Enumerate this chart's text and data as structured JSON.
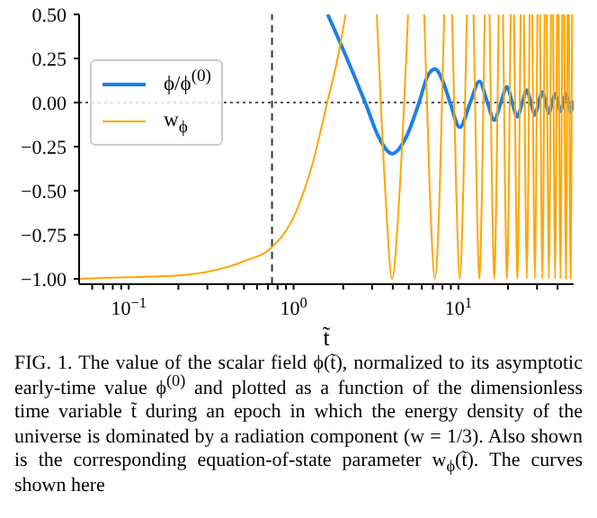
{
  "chart_data": {
    "type": "line",
    "xlabel": "t̃",
    "log": "x",
    "xlim": [
      0.05,
      50
    ],
    "ylim": [
      -1.03,
      0.5
    ],
    "xticks": [
      {
        "value": 0.06,
        "label": null
      },
      {
        "value": 0.07,
        "label": null
      },
      {
        "value": 0.08,
        "label": null
      },
      {
        "value": 0.09,
        "label": null
      },
      {
        "value": 0.1,
        "label": "10$^{−1}$"
      },
      {
        "value": 0.2,
        "label": null
      },
      {
        "value": 0.3,
        "label": null
      },
      {
        "value": 0.4,
        "label": null
      },
      {
        "value": 0.5,
        "label": null
      },
      {
        "value": 0.6,
        "label": null
      },
      {
        "value": 0.7,
        "label": null
      },
      {
        "value": 0.8,
        "label": null
      },
      {
        "value": 0.9,
        "label": null
      },
      {
        "value": 1,
        "label": "10$^{0}$"
      },
      {
        "value": 2,
        "label": null
      },
      {
        "value": 3,
        "label": null
      },
      {
        "value": 4,
        "label": null
      },
      {
        "value": 5,
        "label": null
      },
      {
        "value": 6,
        "label": null
      },
      {
        "value": 7,
        "label": null
      },
      {
        "value": 8,
        "label": null
      },
      {
        "value": 9,
        "label": null
      },
      {
        "value": 10,
        "label": "10$^{1}$"
      },
      {
        "value": 20,
        "label": null
      },
      {
        "value": 30,
        "label": null
      },
      {
        "value": 40,
        "label": null
      }
    ],
    "yticks": [
      {
        "value": 0.5,
        "label": "0.50"
      },
      {
        "value": 0.25,
        "label": "0.25"
      },
      {
        "value": 0,
        "label": "0.00"
      },
      {
        "value": -0.25,
        "label": "−0.25"
      },
      {
        "value": -0.5,
        "label": "−0.50"
      },
      {
        "value": -0.75,
        "label": "−0.75"
      },
      {
        "value": -1,
        "label": "−1.00"
      }
    ],
    "legend": "top left",
    "ref_lines": [
      {
        "axis": "x",
        "value": 0.74,
        "color": "#333333",
        "line_style": "dashed"
      },
      {
        "axis": "y",
        "value": 0,
        "color": "#555555",
        "line_style": "dotted"
      }
    ],
    "series": [
      {
        "name": "ϕ/ϕ$^{(0)}$",
        "color": "#1f7fe8",
        "x": [
          1.61,
          2.0,
          2.72,
          3.3,
          3.96,
          4.8,
          5.77,
          6.5,
          7.2,
          8.2,
          8.9,
          10.2,
          11.8,
          13.4,
          15.0,
          16.5,
          18.1,
          19.7,
          21.2,
          22.8,
          24.4,
          26.0,
          27.5,
          29.1,
          30.7,
          32.3,
          33.9,
          35.4,
          37.0,
          38.6,
          40.1,
          41.6,
          43.3,
          44.9,
          46.4,
          47.9,
          50
        ],
        "values": [
          0.5,
          0.3,
          0,
          -0.2,
          -0.29,
          -0.2,
          0,
          0.15,
          0.19,
          0.1,
          0,
          -0.14,
          0,
          0.12,
          0,
          -0.1,
          0,
          0.09,
          0,
          -0.08,
          0,
          0.07,
          0,
          -0.07,
          0,
          0.06,
          0,
          -0.06,
          0,
          0.05,
          0,
          -0.05,
          0,
          0.05,
          0,
          -0.05,
          0.01
        ]
      },
      {
        "name": "w$_{ϕ}$",
        "color": "#ffa500",
        "x": [
          0.05,
          0.1,
          0.2,
          0.3,
          0.5,
          0.74,
          1.0,
          1.3,
          1.6,
          1.85,
          2.07,
          2.6,
          3.2,
          3.6,
          3.96,
          4.4,
          4.95,
          5.6,
          6.2,
          6.7,
          7.2,
          7.7,
          8.2,
          8.7,
          9.15,
          9.7,
          10.2,
          10.7,
          11.25,
          11.8,
          12.35,
          12.9,
          13.4,
          13.9,
          14.45,
          15.0,
          15.45,
          16.0,
          16.5,
          17.0,
          17.55,
          18.1,
          18.65,
          19.2,
          19.7,
          20.2,
          20.75,
          21.3,
          21.75,
          22.3,
          22.8,
          23.3,
          23.85,
          24.4,
          24.95,
          25.5,
          26.0,
          26.5,
          27.05,
          27.6,
          28.05,
          28.6,
          29.1,
          29.6,
          30.15,
          30.7,
          31.25,
          31.8,
          32.3,
          32.8,
          33.35,
          33.9,
          34.35,
          34.9,
          35.4,
          35.9,
          36.45,
          37.0,
          37.55,
          38.1,
          38.6,
          39.1,
          39.65,
          40.1,
          40.55,
          41.1,
          41.6,
          42.1,
          42.65,
          43.3,
          43.85,
          44.4,
          44.9,
          45.4,
          45.95,
          46.4,
          46.85,
          47.4,
          47.9,
          48.4,
          48.95
        ],
        "values": [
          -1.0,
          -0.99,
          -0.98,
          -0.96,
          -0.9,
          -0.82,
          -0.65,
          -0.35,
          0.0,
          0.25,
          0.5,
          null,
          0.5,
          -0.5,
          -1,
          -0.5,
          0.5,
          null,
          0.5,
          -0.5,
          -1,
          -0.5,
          0.5,
          null,
          0.5,
          -0.5,
          -1,
          -0.5,
          0.5,
          null,
          0.5,
          -0.5,
          -1,
          -0.5,
          0.5,
          null,
          0.5,
          -0.5,
          -1,
          -0.5,
          0.5,
          null,
          0.5,
          -0.5,
          -1,
          -0.5,
          0.5,
          null,
          0.5,
          -0.5,
          -1,
          -0.5,
          0.5,
          null,
          0.5,
          -0.5,
          -1,
          -0.5,
          0.5,
          null,
          0.5,
          -0.5,
          -1,
          -0.5,
          0.5,
          null,
          0.5,
          -0.5,
          -1,
          -0.5,
          0.5,
          null,
          0.5,
          -0.5,
          -1,
          -0.5,
          0.5,
          null,
          0.5,
          -0.5,
          -1,
          -0.5,
          0.5,
          null,
          0.5,
          -0.5,
          -1,
          -0.5,
          0.5,
          null,
          0.5,
          -0.5,
          -1,
          -0.5,
          0.5,
          null,
          0.5,
          -0.5,
          -1,
          -0.5,
          0.5
        ]
      }
    ],
    "annotations": [
      "FIG. 1. The value of the scalar field ϕ(t̃), normalized to its asymptotic early-time value ϕ$^{(0)}$ and plotted as a function of the dimensionless time variable t̃ during an epoch in which the energy density of the universe is dominated by a radiation component (w = 1/3). Also shown is the corresponding equation-of-state parameter w$_{ϕ}$(t̃). The curves shown here"
    ]
  }
}
